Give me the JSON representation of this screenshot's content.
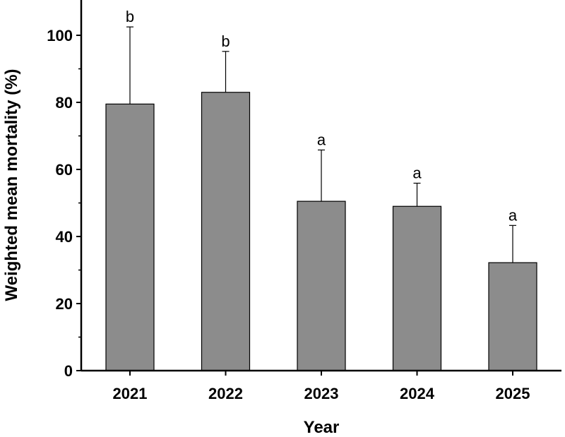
{
  "chart_data": {
    "type": "bar",
    "categories": [
      "2021",
      "2022",
      "2023",
      "2024",
      "2025"
    ],
    "values": [
      79.5,
      83.0,
      50.5,
      49.0,
      32.2
    ],
    "error_upper": [
      102.5,
      95.2,
      65.8,
      55.9,
      43.3
    ],
    "significance": [
      "b",
      "b",
      "a",
      "a",
      "a"
    ],
    "xlabel": "Year",
    "ylabel": "Weighted mean mortality (%)",
    "ylim": [
      0,
      110
    ],
    "yticks": [
      0,
      20,
      40,
      60,
      80,
      100
    ],
    "grid": false,
    "bar_color": "#8c8c8c",
    "bar_edge_color": "#000000"
  }
}
